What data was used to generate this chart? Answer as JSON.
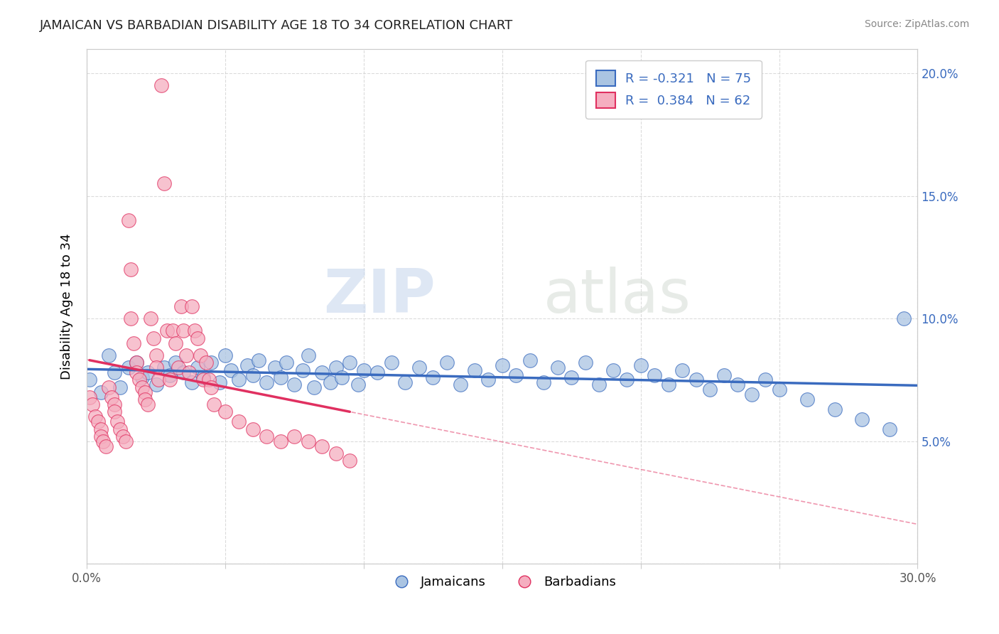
{
  "title": "JAMAICAN VS BARBADIAN DISABILITY AGE 18 TO 34 CORRELATION CHART",
  "source": "Source: ZipAtlas.com",
  "ylabel": "Disability Age 18 to 34",
  "xlim": [
    0.0,
    0.3
  ],
  "ylim": [
    0.0,
    0.21
  ],
  "xticks": [
    0.0,
    0.05,
    0.1,
    0.15,
    0.2,
    0.25,
    0.3
  ],
  "yticks": [
    0.0,
    0.05,
    0.1,
    0.15,
    0.2
  ],
  "jamaican_color": "#aac4e2",
  "barbadian_color": "#f5aec0",
  "jamaican_line_color": "#3a6bbf",
  "barbadian_line_color": "#e03060",
  "watermark_zip": "ZIP",
  "watermark_atlas": "atlas",
  "jamaican_x": [
    0.001,
    0.005,
    0.008,
    0.01,
    0.012,
    0.015,
    0.018,
    0.02,
    0.022,
    0.025,
    0.028,
    0.03,
    0.032,
    0.035,
    0.038,
    0.04,
    0.042,
    0.045,
    0.048,
    0.05,
    0.052,
    0.055,
    0.058,
    0.06,
    0.062,
    0.065,
    0.068,
    0.07,
    0.072,
    0.075,
    0.078,
    0.08,
    0.082,
    0.085,
    0.088,
    0.09,
    0.092,
    0.095,
    0.098,
    0.1,
    0.105,
    0.11,
    0.115,
    0.12,
    0.125,
    0.13,
    0.135,
    0.14,
    0.145,
    0.15,
    0.155,
    0.16,
    0.165,
    0.17,
    0.175,
    0.18,
    0.185,
    0.19,
    0.195,
    0.2,
    0.205,
    0.21,
    0.215,
    0.22,
    0.225,
    0.23,
    0.235,
    0.24,
    0.245,
    0.25,
    0.26,
    0.27,
    0.28,
    0.29,
    0.295
  ],
  "jamaican_y": [
    0.075,
    0.07,
    0.085,
    0.078,
    0.072,
    0.08,
    0.082,
    0.076,
    0.078,
    0.073,
    0.08,
    0.077,
    0.082,
    0.078,
    0.074,
    0.08,
    0.076,
    0.082,
    0.074,
    0.085,
    0.079,
    0.075,
    0.081,
    0.077,
    0.083,
    0.074,
    0.08,
    0.076,
    0.082,
    0.073,
    0.079,
    0.085,
    0.072,
    0.078,
    0.074,
    0.08,
    0.076,
    0.082,
    0.073,
    0.079,
    0.078,
    0.082,
    0.074,
    0.08,
    0.076,
    0.082,
    0.073,
    0.079,
    0.075,
    0.081,
    0.077,
    0.083,
    0.074,
    0.08,
    0.076,
    0.082,
    0.073,
    0.079,
    0.075,
    0.081,
    0.077,
    0.073,
    0.079,
    0.075,
    0.071,
    0.077,
    0.073,
    0.069,
    0.075,
    0.071,
    0.067,
    0.063,
    0.059,
    0.055,
    0.1
  ],
  "barbadian_x": [
    0.001,
    0.002,
    0.003,
    0.004,
    0.005,
    0.005,
    0.006,
    0.007,
    0.008,
    0.009,
    0.01,
    0.01,
    0.011,
    0.012,
    0.013,
    0.014,
    0.015,
    0.016,
    0.016,
    0.017,
    0.018,
    0.018,
    0.019,
    0.02,
    0.021,
    0.021,
    0.022,
    0.023,
    0.024,
    0.025,
    0.025,
    0.026,
    0.027,
    0.028,
    0.029,
    0.03,
    0.031,
    0.032,
    0.033,
    0.034,
    0.035,
    0.036,
    0.037,
    0.038,
    0.039,
    0.04,
    0.041,
    0.042,
    0.043,
    0.044,
    0.045,
    0.046,
    0.05,
    0.055,
    0.06,
    0.065,
    0.07,
    0.075,
    0.08,
    0.085,
    0.09,
    0.095
  ],
  "barbadian_y": [
    0.068,
    0.065,
    0.06,
    0.058,
    0.055,
    0.052,
    0.05,
    0.048,
    0.072,
    0.068,
    0.065,
    0.062,
    0.058,
    0.055,
    0.052,
    0.05,
    0.14,
    0.12,
    0.1,
    0.09,
    0.082,
    0.078,
    0.075,
    0.072,
    0.07,
    0.067,
    0.065,
    0.1,
    0.092,
    0.085,
    0.08,
    0.075,
    0.195,
    0.155,
    0.095,
    0.075,
    0.095,
    0.09,
    0.08,
    0.105,
    0.095,
    0.085,
    0.078,
    0.105,
    0.095,
    0.092,
    0.085,
    0.075,
    0.082,
    0.075,
    0.072,
    0.065,
    0.062,
    0.058,
    0.055,
    0.052,
    0.05,
    0.052,
    0.05,
    0.048,
    0.045,
    0.042
  ]
}
